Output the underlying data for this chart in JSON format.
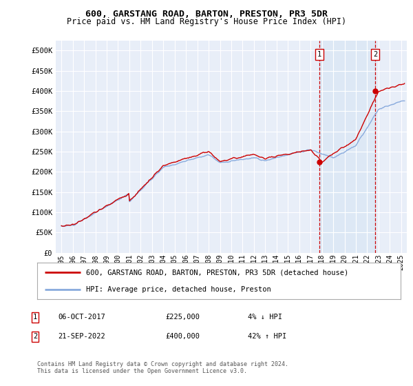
{
  "title": "600, GARSTANG ROAD, BARTON, PRESTON, PR3 5DR",
  "subtitle": "Price paid vs. HM Land Registry's House Price Index (HPI)",
  "ytick_values": [
    0,
    50000,
    100000,
    150000,
    200000,
    250000,
    300000,
    350000,
    400000,
    450000,
    500000
  ],
  "ylim": [
    0,
    525000
  ],
  "xlim_start": 1994.5,
  "xlim_end": 2025.5,
  "xtick_years": [
    1995,
    1996,
    1997,
    1998,
    1999,
    2000,
    2001,
    2002,
    2003,
    2004,
    2005,
    2006,
    2007,
    2008,
    2009,
    2010,
    2011,
    2012,
    2013,
    2014,
    2015,
    2016,
    2017,
    2018,
    2019,
    2020,
    2021,
    2022,
    2023,
    2024,
    2025
  ],
  "background_color": "#ffffff",
  "plot_bg_color": "#e8eef8",
  "grid_color": "#ffffff",
  "annotation1": {
    "label": "1",
    "date_str": "06-OCT-2017",
    "price": 225000,
    "pct": "4%",
    "dir": "↓",
    "x": 2017.77
  },
  "annotation2": {
    "label": "2",
    "date_str": "21-SEP-2022",
    "price": 400000,
    "pct": "42%",
    "dir": "↑",
    "x": 2022.72
  },
  "legend_line1": "600, GARSTANG ROAD, BARTON, PRESTON, PR3 5DR (detached house)",
  "legend_line2": "HPI: Average price, detached house, Preston",
  "footer": "Contains HM Land Registry data © Crown copyright and database right 2024.\nThis data is licensed under the Open Government Licence v3.0.",
  "line_color_red": "#cc0000",
  "line_color_blue": "#88aadd",
  "shaded_region_color": "#dde8f5",
  "dashed_line_color": "#cc0000",
  "title_fontsize": 9.5,
  "subtitle_fontsize": 8.5
}
